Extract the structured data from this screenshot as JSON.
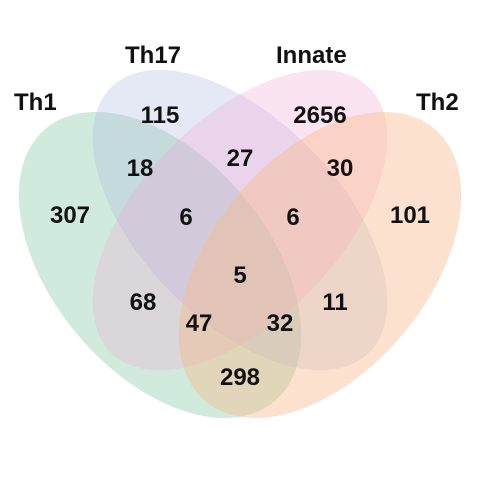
{
  "sets": [
    {
      "key": "th1",
      "name": "Th1",
      "color": "#8fcfae"
    },
    {
      "key": "th17",
      "name": "Th17",
      "color": "#a9b4dd"
    },
    {
      "key": "innate",
      "name": "Innate",
      "color": "#f2a6d3"
    },
    {
      "key": "th2",
      "name": "Th2",
      "color": "#f9b98b"
    }
  ],
  "regions": [
    {
      "sets": [
        "Th1"
      ],
      "value": "307"
    },
    {
      "sets": [
        "Th17"
      ],
      "value": "115"
    },
    {
      "sets": [
        "Innate"
      ],
      "value": "2656"
    },
    {
      "sets": [
        "Th2"
      ],
      "value": "101"
    },
    {
      "sets": [
        "Th1",
        "Th17"
      ],
      "value": "18"
    },
    {
      "sets": [
        "Th17",
        "Innate"
      ],
      "value": "27"
    },
    {
      "sets": [
        "Innate",
        "Th2"
      ],
      "value": "30"
    },
    {
      "sets": [
        "Th1",
        "Th17",
        "Innate"
      ],
      "value": "6"
    },
    {
      "sets": [
        "Th17",
        "Innate",
        "Th2"
      ],
      "value": "6"
    },
    {
      "sets": [
        "Th1",
        "Th17",
        "Innate",
        "Th2"
      ],
      "value": "5"
    },
    {
      "sets": [
        "Th1",
        "Innate"
      ],
      "value": "68"
    },
    {
      "sets": [
        "Th1",
        "Innate",
        "Th2"
      ],
      "value": "47"
    },
    {
      "sets": [
        "Th1",
        "Th17",
        "Th2"
      ],
      "value": "32"
    },
    {
      "sets": [
        "Th17",
        "Th2"
      ],
      "value": "11"
    },
    {
      "sets": [
        "Th1",
        "Th2"
      ],
      "value": "298"
    }
  ]
}
